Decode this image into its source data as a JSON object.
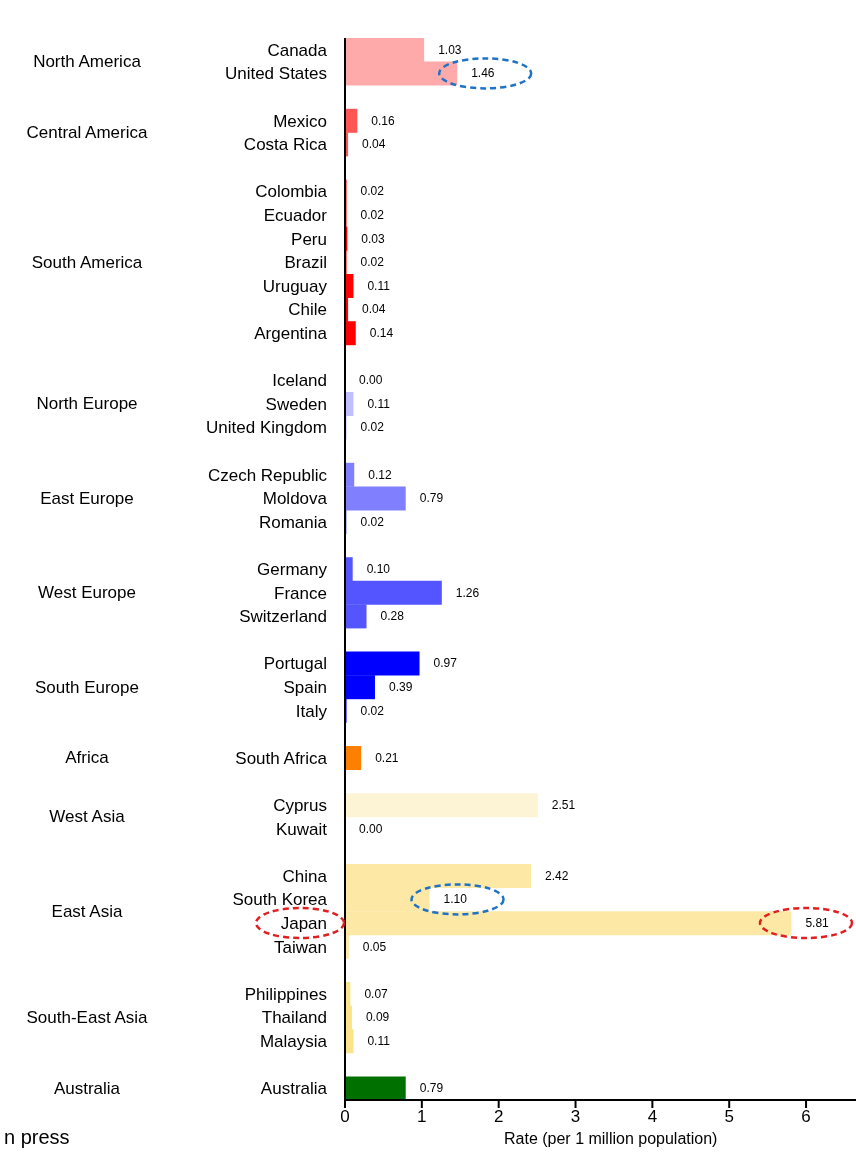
{
  "chart_data": {
    "type": "bar",
    "orientation": "horizontal",
    "categories": [
      "Canada",
      "United States",
      null,
      "Mexico",
      "Costa Rica",
      null,
      "Colombia",
      "Ecuador",
      "Peru",
      "Brazil",
      "Uruguay",
      "Chile",
      "Argentina",
      null,
      "Iceland",
      "Sweden",
      "United Kingdom",
      null,
      "Czech Republic",
      "Moldova",
      "Romania",
      null,
      "Germany",
      "France",
      "Switzerland",
      null,
      "Portugal",
      "Spain",
      "Italy",
      null,
      "South Africa",
      null,
      "Cyprus",
      "Kuwait",
      null,
      "China",
      "South Korea",
      "Japan",
      "Taiwan",
      null,
      "Philippines",
      "Thailand",
      "Malaysia",
      null,
      "Australia"
    ],
    "values": [
      1.03,
      1.46,
      null,
      0.16,
      0.04,
      null,
      0.02,
      0.02,
      0.03,
      0.02,
      0.11,
      0.04,
      0.14,
      null,
      0.0,
      0.11,
      0.02,
      null,
      0.12,
      0.79,
      0.02,
      null,
      0.1,
      1.26,
      0.28,
      null,
      0.97,
      0.39,
      0.02,
      null,
      0.21,
      null,
      2.51,
      0.0,
      null,
      2.42,
      1.1,
      5.81,
      0.05,
      null,
      0.07,
      0.09,
      0.11,
      null,
      0.79
    ],
    "value_labels": [
      "1.03",
      "1.46",
      null,
      "0.16",
      "0.04",
      null,
      "0.02",
      "0.02",
      "0.03",
      "0.02",
      "0.11",
      "0.04",
      "0.14",
      null,
      "0.00",
      "0.11",
      "0.02",
      null,
      "0.12",
      "0.79",
      "0.02",
      null,
      "0.10",
      "1.26",
      "0.28",
      null,
      "0.97",
      "0.39",
      "0.02",
      null,
      "0.21",
      null,
      "2.51",
      "0.00",
      null,
      "2.42",
      "1.10",
      "5.81",
      "0.05",
      null,
      "0.07",
      "0.09",
      "0.11",
      null,
      "0.79"
    ],
    "colors": [
      "#ffaaaa",
      "#ffaaaa",
      null,
      "#ff5555",
      "#ff5555",
      null,
      "#ff0000",
      "#ff0000",
      "#ff0000",
      "#ff0000",
      "#ff0000",
      "#ff0000",
      "#ff0000",
      null,
      "#c0c0ff",
      "#c0c0ff",
      "#c0c0ff",
      null,
      "#8080ff",
      "#8080ff",
      "#8080ff",
      null,
      "#5555ff",
      "#5555ff",
      "#5555ff",
      null,
      "#0000ff",
      "#0000ff",
      "#0000ff",
      null,
      "#ff8000",
      null,
      "#fdf3d5",
      "#fdf3d5",
      null,
      "#fde9a5",
      "#fde9a5",
      "#fde9a5",
      "#fde9a5",
      null,
      "#fbe38c",
      "#fbe38c",
      "#fbe38c",
      null,
      "#007000"
    ],
    "xlim": [
      0,
      6.65
    ],
    "xticks": [
      0,
      1,
      2,
      3,
      4,
      5,
      6
    ],
    "xlabel": "Rate (per 1 million population)",
    "annotations": [
      "North America",
      "Central America",
      "South America",
      "North Europe",
      "East Europe",
      "West Europe",
      "South Europe",
      "Africa",
      "West Asia",
      "East Asia",
      "South-East Asia",
      "Australia",
      "n press"
    ]
  }
}
